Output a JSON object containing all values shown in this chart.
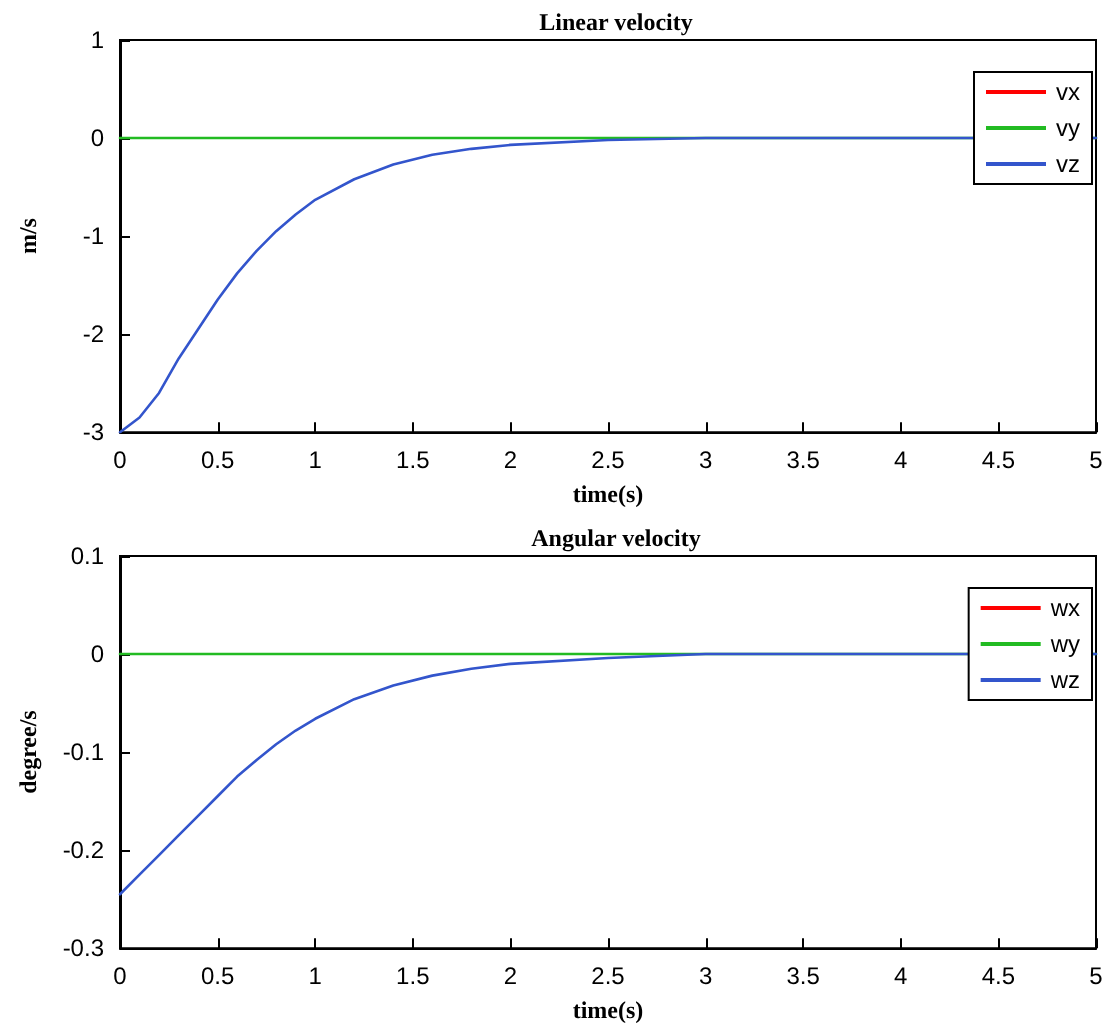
{
  "chart_data": [
    {
      "type": "line",
      "title": "Linear velocity",
      "xlabel": "time(s)",
      "ylabel": "m/s",
      "xlim": [
        0,
        5
      ],
      "xticks": [
        0,
        0.5,
        1,
        1.5,
        2,
        2.5,
        3,
        3.5,
        4,
        4.5,
        5
      ],
      "ylim": [
        -3,
        1
      ],
      "yticks": [
        -3,
        -2,
        -1,
        0,
        1
      ],
      "grid": false,
      "legend": "top right",
      "marker": "none",
      "line_style": "solid",
      "series": [
        {
          "name": "vx",
          "color": "#ff0000"
        },
        {
          "name": "vy",
          "color": "#22bb22",
          "x": [
            0,
            5
          ],
          "values": [
            0,
            0
          ]
        },
        {
          "name": "vz",
          "color": "#3355cc",
          "x": [
            0,
            0.1,
            0.2,
            0.3,
            0.4,
            0.5,
            0.6,
            0.7,
            0.8,
            0.9,
            1.0,
            1.2,
            1.4,
            1.6,
            1.8,
            2.0,
            2.5,
            3,
            4,
            5
          ],
          "values": [
            -3,
            -2.85,
            -2.6,
            -2.25,
            -1.95,
            -1.65,
            -1.38,
            -1.15,
            -0.95,
            -0.78,
            -0.63,
            -0.42,
            -0.27,
            -0.17,
            -0.11,
            -0.07,
            -0.02,
            0,
            0,
            0
          ]
        }
      ]
    },
    {
      "type": "line",
      "title": "Angular velocity",
      "xlabel": "time(s)",
      "ylabel": "degree/s",
      "xlim": [
        0,
        5
      ],
      "xticks": [
        0,
        0.5,
        1,
        1.5,
        2,
        2.5,
        3,
        3.5,
        4,
        4.5,
        5
      ],
      "ylim": [
        -0.3,
        0.1
      ],
      "yticks": [
        -0.3,
        -0.2,
        -0.1,
        0,
        0.1
      ],
      "grid": false,
      "legend": "top right",
      "marker": "none",
      "line_style": "solid",
      "series": [
        {
          "name": "wx",
          "color": "#ff0000"
        },
        {
          "name": "wy",
          "color": "#22bb22",
          "x": [
            0,
            5
          ],
          "values": [
            0,
            0
          ]
        },
        {
          "name": "wz",
          "color": "#3355cc",
          "x": [
            0,
            0.1,
            0.2,
            0.3,
            0.4,
            0.5,
            0.6,
            0.7,
            0.8,
            0.9,
            1.0,
            1.2,
            1.4,
            1.6,
            1.8,
            2.0,
            2.5,
            3,
            5
          ],
          "values": [
            -0.245,
            -0.225,
            -0.205,
            -0.185,
            -0.165,
            -0.145,
            -0.125,
            -0.108,
            -0.092,
            -0.078,
            -0.066,
            -0.046,
            -0.032,
            -0.022,
            -0.015,
            -0.01,
            -0.004,
            0,
            0
          ]
        }
      ]
    }
  ]
}
